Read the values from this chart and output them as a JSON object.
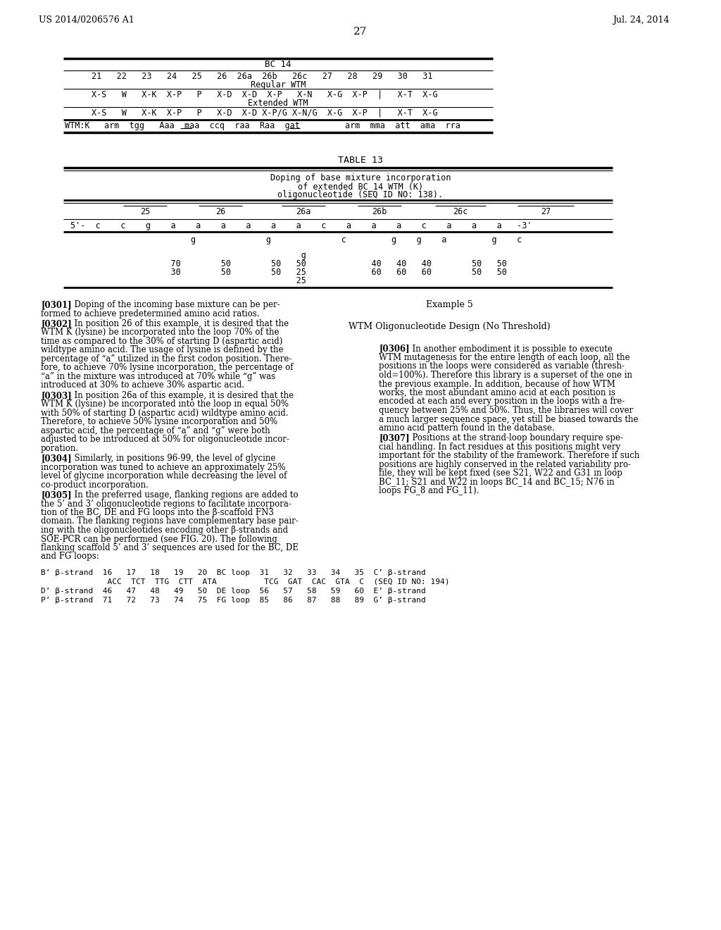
{
  "page_header_left": "US 2014/0206576 A1",
  "page_header_right": "Jul. 24, 2014",
  "page_number": "27",
  "background_color": "#ffffff",
  "text_color": "#000000",
  "bc14_title": "BC 14",
  "bc14_row1": "21   22   23   24   25   26  26a  26b   26c   27   28   29   30   31",
  "bc14_row1_sub": "Regular WTM",
  "bc14_row2": "X-S   W   X-K  X-P   P   X-D  X-D  X-P   X-N   X-G  X-P  |   X-T  X-G",
  "bc14_row2_sub": "Extended WTM",
  "bc14_row3": "X-S   W   X-K  X-P   P   X-D  X-D X-P/G X-N/G  X-G  X-P  |   X-T  X-G",
  "bc14_row4_label": "WTM:K",
  "bc14_row4": "arm  tgg   Aaa  maa  ccq  raa  Raa  gat         arm  mma  att  ama  rra",
  "table13_title": "TABLE 13",
  "table13_subtitle1": "Doping of base mixture incorporation",
  "table13_subtitle2": "of extended BC_14 WTM (K)",
  "table13_subtitle3": "oligonucleotide (SEQ ID NO: 138).",
  "table13_headers": [
    "25",
    "26",
    "26a",
    "26b",
    "26c",
    "27"
  ],
  "para0301_label": "[0301]",
  "para0301_text": "  Doping of the incoming base mixture can be per-\nformed to achieve predetermined amino acid ratios.",
  "para0302_label": "[0302]",
  "para0302_text": "  In position 26 of this example, it is desired that the\nWTM K (lysine) be incorporated into the loop 70% of the\ntime as compared to the 30% of starting D (aspartic acid)\nwildtype amino acid. The usage of lysine is defined by the\npercentage of “a” utilized in the first codon position. There-\nfore, to achieve 70% lysine incorporation, the percentage of\n“a” in the mixture was introduced at 70% while “g” was\nintroduced at 30% to achieve 30% aspartic acid.",
  "para0303_label": "[0303]",
  "para0303_text": "  In position 26a of this example, it is desired that the\nWTM K (lysine) be incorporated into the loop in equal 50%\nwith 50% of starting D (aspartic acid) wildtype amino acid.\nTherefore, to achieve 50% lysine incorporation and 50%\naspartic acid, the percentage of “a” and “g” were both\nadjusted to be introduced at 50% for oligonucleotide incor-\nporation.",
  "para0304_label": "[0304]",
  "para0304_text": "  Similarly, in positions 96-99, the level of glycine\nincorporation was tuned to achieve an approximately 25%\nlevel of glycine incorporation while decreasing the level of\nco-product incorporation.",
  "para0305_label": "[0305]",
  "para0305_text": "  In the preferred usage, flanking regions are added to\nthe 5’ and 3’ oligonucleotide regions to facilitate incorpora-\ntion of the BC, DE and FG loops into the β-scaffold FN3\ndomain. The flanking regions have complementary base pair-\ning with the oligonucleotides encoding other β-strands and\nSOE-PCR can be performed (see FIG. 20). The following\nflanking scaffold 5’ and 3’ sequences are used for the BC, DE\nand FG loops:",
  "example5_title": "Example 5",
  "example5_subtitle": "WTM Oligonucleotide Design (No Threshold)",
  "para0306_label": "[0306]",
  "para0306_text": "  In another embodiment it is possible to execute\nWTM mutagenesis for the entire length of each loop, all the\npositions in the loops were considered as variable (thresh-\nold=100%). Therefore this library is a superset of the one in\nthe previous example. In addition, because of how WTM\nworks, the most abundant amino acid at each position is\nencoded at each and every position in the loops with a fre-\nquency between 25% and 50%. Thus, the libraries will cover\na much larger sequence space, yet still be biased towards the\namino acid pattern found in the database.",
  "para0307_label": "[0307]",
  "para0307_text": "  Positions at the strand-loop boundary require spe-\ncial handling. In fact residues at this positions might very\nimportant for the stability of the framework. Therefore if such\npositions are highly conserved in the related variability pro-\nfile, they will be kept fixed (see S21, W22 and G31 in loop\nBC_11; S21 and W22 in loops BC_14 and BC_15; N76 in\nloops FG_8 and FG_11).",
  "flanking_b_beta": "B’ β-strand  16   17   18   19   20  BC loop  31   32   33   34   35  C’ β-strand",
  "flanking_b_seq": "              ACC  TCT  TTG  CTT  ATA          TCG  GAT  CAC  GTA  C  (SEQ ID NO: 194)",
  "flanking_d_beta": "D’ β-strand  46   47   48   49   50  DE loop  56   57   58   59   60  E’ β-strand",
  "flanking_p_beta": "P’ β-strand  71   72   73   74   75  FG loop  85   86   87   88   89  G’ β-strand"
}
